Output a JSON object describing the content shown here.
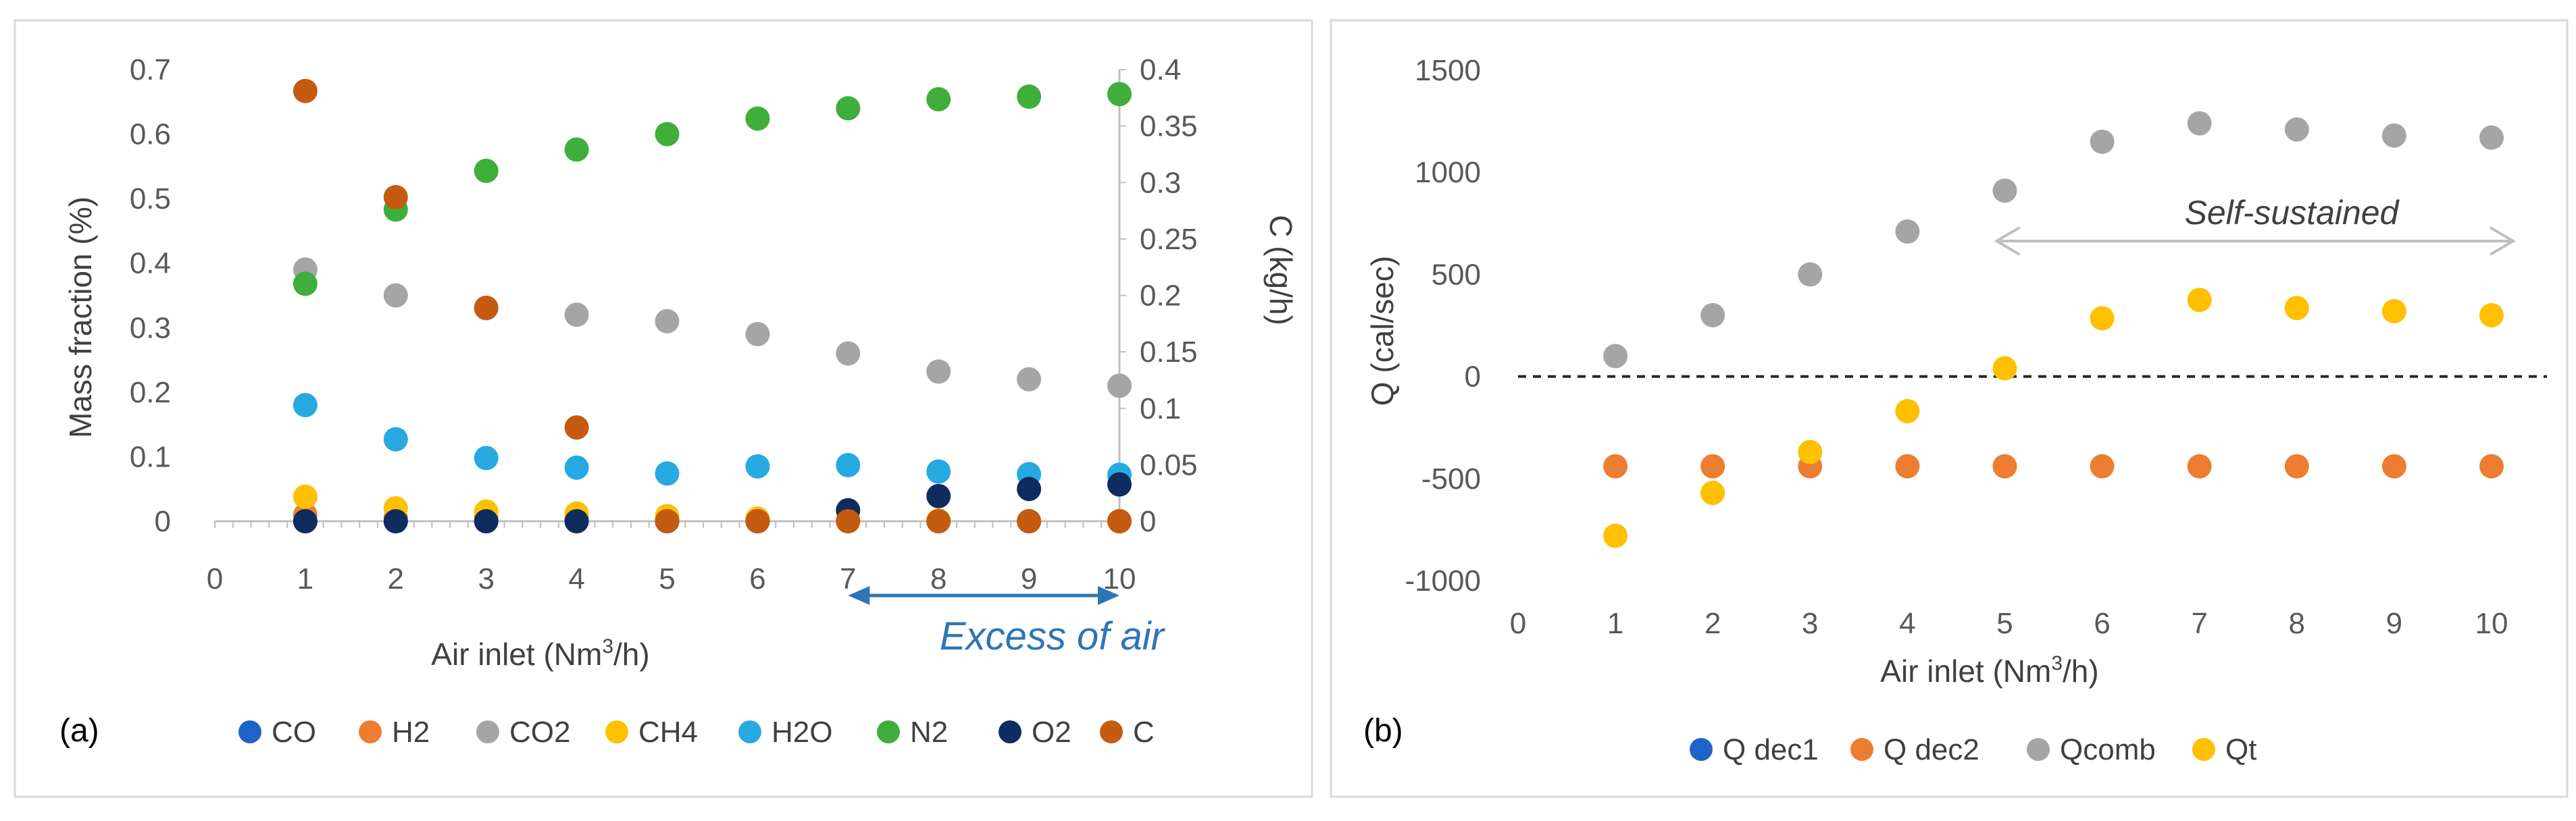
{
  "chart_data": [
    {
      "type": "scatter",
      "panel_label": "(a)",
      "xlabel_main": "Air inlet (Nm",
      "xlabel_sup": "3",
      "xlabel_end": "/h)",
      "ylabel": "Mass fraction (%)",
      "y2label": "C (kg/h)",
      "xlim": [
        0,
        10
      ],
      "ylim": [
        0,
        0.7
      ],
      "y2lim": [
        0,
        0.4
      ],
      "x_ticks": [
        "0",
        "1",
        "2",
        "3",
        "4",
        "5",
        "6",
        "7",
        "8",
        "9",
        "10"
      ],
      "y_ticks": [
        "0",
        "0.1",
        "0.2",
        "0.3",
        "0.4",
        "0.5",
        "0.6",
        "0.7"
      ],
      "y2_ticks": [
        "0",
        "0.05",
        "0.1",
        "0.15",
        "0.2",
        "0.25",
        "0.3",
        "0.35",
        "0.4"
      ],
      "annotation": "Excess of air",
      "annotation_range": [
        7,
        10
      ],
      "legend_position": "bottom",
      "series": [
        {
          "name": "CO",
          "color": "#1f63c9",
          "axis": "left",
          "x": [
            1,
            2,
            3,
            4,
            5,
            6,
            7,
            8,
            9,
            10
          ],
          "values": [
            0,
            0,
            0,
            0,
            0,
            0,
            0,
            0,
            0,
            0
          ]
        },
        {
          "name": "H2",
          "color": "#ed7d31",
          "axis": "left",
          "x": [
            1,
            2,
            3,
            4,
            5,
            6,
            7,
            8,
            9,
            10
          ],
          "values": [
            0.01,
            0.005,
            0.005,
            0.003,
            0.003,
            0.002,
            0.001,
            0,
            0,
            0
          ]
        },
        {
          "name": "CO2",
          "color": "#a5a5a5",
          "axis": "left",
          "x": [
            1,
            2,
            3,
            4,
            5,
            6,
            7,
            8,
            9,
            10
          ],
          "values": [
            0.39,
            0.35,
            0.33,
            0.32,
            0.31,
            0.29,
            0.26,
            0.232,
            0.22,
            0.21
          ]
        },
        {
          "name": "CH4",
          "color": "#ffc000",
          "axis": "left",
          "x": [
            1,
            2,
            3,
            4,
            5,
            6,
            7,
            8,
            9,
            10
          ],
          "values": [
            0.038,
            0.02,
            0.015,
            0.012,
            0.008,
            0.004,
            0.002,
            0.001,
            0,
            0
          ]
        },
        {
          "name": "H2O",
          "color": "#27a9e1",
          "axis": "left",
          "x": [
            1,
            2,
            3,
            4,
            5,
            6,
            7,
            8,
            9,
            10
          ],
          "values": [
            0.18,
            0.127,
            0.098,
            0.083,
            0.074,
            0.085,
            0.087,
            0.077,
            0.073,
            0.072
          ]
        },
        {
          "name": "N2",
          "color": "#3fae3b",
          "axis": "left",
          "x": [
            1,
            2,
            3,
            4,
            5,
            6,
            7,
            8,
            9,
            10
          ],
          "values": [
            0.368,
            0.483,
            0.543,
            0.576,
            0.6,
            0.624,
            0.64,
            0.654,
            0.658,
            0.662
          ]
        },
        {
          "name": "O2",
          "color": "#0e2c5e",
          "axis": "left",
          "x": [
            1,
            2,
            3,
            4,
            5,
            6,
            7,
            8,
            9,
            10
          ],
          "values": [
            0,
            0,
            0,
            0,
            0,
            0,
            0.017,
            0.039,
            0.05,
            0.057
          ]
        },
        {
          "name": "C",
          "color": "#c55a11",
          "axis": "right",
          "x": [
            1,
            2,
            3,
            4,
            5,
            6,
            7,
            8,
            9,
            10
          ],
          "values": [
            0.381,
            0.287,
            0.189,
            0.083,
            0,
            0,
            0,
            0,
            0,
            0
          ]
        }
      ]
    },
    {
      "type": "scatter",
      "panel_label": "(b)",
      "xlabel_main": "Air inlet (Nm",
      "xlabel_sup": "3",
      "xlabel_end": "/h)",
      "ylabel": "Q (cal/sec)",
      "xlim": [
        0,
        10
      ],
      "ylim": [
        -1000,
        1500
      ],
      "x_ticks": [
        "0",
        "1",
        "2",
        "3",
        "4",
        "5",
        "6",
        "7",
        "8",
        "9",
        "10"
      ],
      "y_ticks": [
        "-1000",
        "-500",
        "0",
        "500",
        "1000",
        "1500"
      ],
      "annotation": "Self-sustained",
      "annotation_range": [
        5,
        10
      ],
      "zero_line": true,
      "legend_position": "bottom",
      "series": [
        {
          "name": "Q dec1",
          "color": "#1f63c9",
          "x": [],
          "values": []
        },
        {
          "name": "Q dec2",
          "color": "#ed7d31",
          "x": [
            1,
            2,
            3,
            4,
            5,
            6,
            7,
            8,
            9,
            10
          ],
          "values": [
            -440,
            -440,
            -440,
            -440,
            -440,
            -440,
            -440,
            -440,
            -440,
            -440
          ]
        },
        {
          "name": "Qcomb",
          "color": "#a5a5a5",
          "x": [
            1,
            2,
            3,
            4,
            5,
            6,
            7,
            8,
            9,
            10
          ],
          "values": [
            100,
            300,
            500,
            710,
            910,
            1150,
            1240,
            1210,
            1180,
            1170
          ]
        },
        {
          "name": "Qt",
          "color": "#ffc000",
          "x": [
            1,
            2,
            3,
            4,
            5,
            6,
            7,
            8,
            9,
            10
          ],
          "values": [
            -780,
            -570,
            -370,
            -170,
            40,
            285,
            375,
            335,
            320,
            300
          ]
        }
      ]
    }
  ]
}
